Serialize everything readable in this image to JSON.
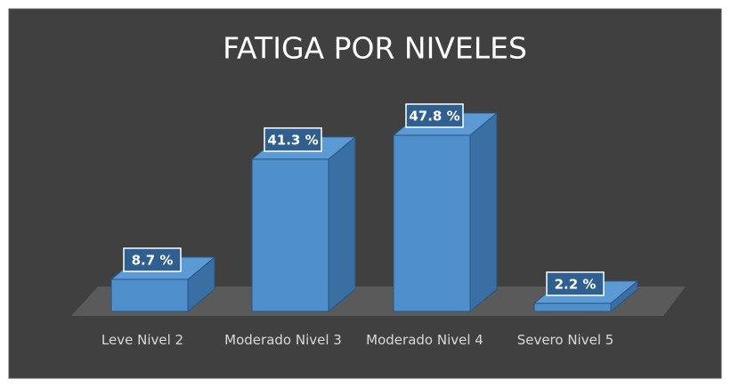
{
  "chart_data": {
    "type": "bar3d",
    "title": "FATIGA POR NIVELES",
    "categories": [
      "Leve Nivel 2",
      "Moderado Nivel 3",
      "Moderado Nivel 4",
      "Severo Nivel 5"
    ],
    "values": [
      8.7,
      41.3,
      47.8,
      2.2
    ],
    "value_labels": [
      "8.7 %",
      "41.3 %",
      "47.8 %",
      "2.2 %"
    ],
    "color": "#4f8fcc"
  }
}
